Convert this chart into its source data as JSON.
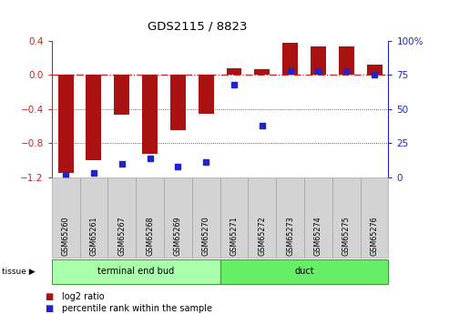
{
  "title": "GDS2115 / 8823",
  "samples": [
    "GSM65260",
    "GSM65261",
    "GSM65267",
    "GSM65268",
    "GSM65269",
    "GSM65270",
    "GSM65271",
    "GSM65272",
    "GSM65273",
    "GSM65274",
    "GSM65275",
    "GSM65276"
  ],
  "log2_ratio": [
    -1.15,
    -1.0,
    -0.47,
    -0.92,
    -0.65,
    -0.45,
    0.08,
    0.07,
    0.38,
    0.33,
    0.33,
    0.12
  ],
  "percentile_rank": [
    2,
    3,
    10,
    14,
    8,
    11,
    68,
    38,
    78,
    78,
    78,
    75
  ],
  "tissue_groups": [
    {
      "label": "terminal end bud",
      "start": 0,
      "end": 6
    },
    {
      "label": "duct",
      "start": 6,
      "end": 12
    }
  ],
  "tissue_colors": [
    "#AAFFAA",
    "#66EE66"
  ],
  "ylim_left": [
    -1.2,
    0.4
  ],
  "ylim_right": [
    0,
    100
  ],
  "bar_color": "#AA1111",
  "dot_color": "#2222CC",
  "zero_line_color": "#CC2222",
  "grid_color": "#333333",
  "plot_bg_color": "#FFFFFF",
  "tick_bg_color": "#D3D3D3",
  "left_tick_color": "#CC2222",
  "right_tick_color": "#2222CC"
}
